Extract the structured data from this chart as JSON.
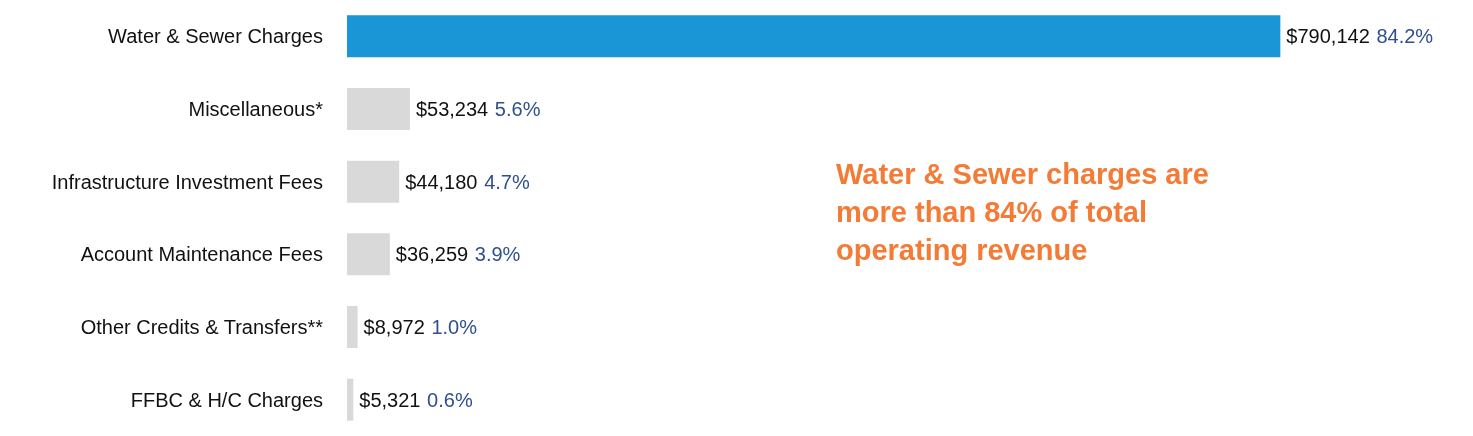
{
  "chart_data": {
    "type": "bar",
    "orientation": "horizontal",
    "categories": [
      "Water & Sewer Charges",
      "Miscellaneous*",
      "Infrastructure Investment Fees",
      "Account Maintenance Fees",
      "Other Credits & Transfers**",
      "FFBC & H/C Charges"
    ],
    "values": [
      790142,
      53234,
      44180,
      36259,
      8972,
      5321
    ],
    "colors": [
      "#1a95d6",
      "#d9d9d9",
      "#d9d9d9",
      "#d9d9d9",
      "#d9d9d9",
      "#d9d9d9"
    ],
    "value_labels": [
      "$790,142 84.2%",
      "$53,234 5.6%",
      "$44,180 4.7%",
      "$36,259 3.9%",
      "$8,972 1.0%",
      "$5,321 0.6%"
    ],
    "annotations": [
      "Water & Sewer charges are more than 84% of total operating revenue"
    ]
  }
}
